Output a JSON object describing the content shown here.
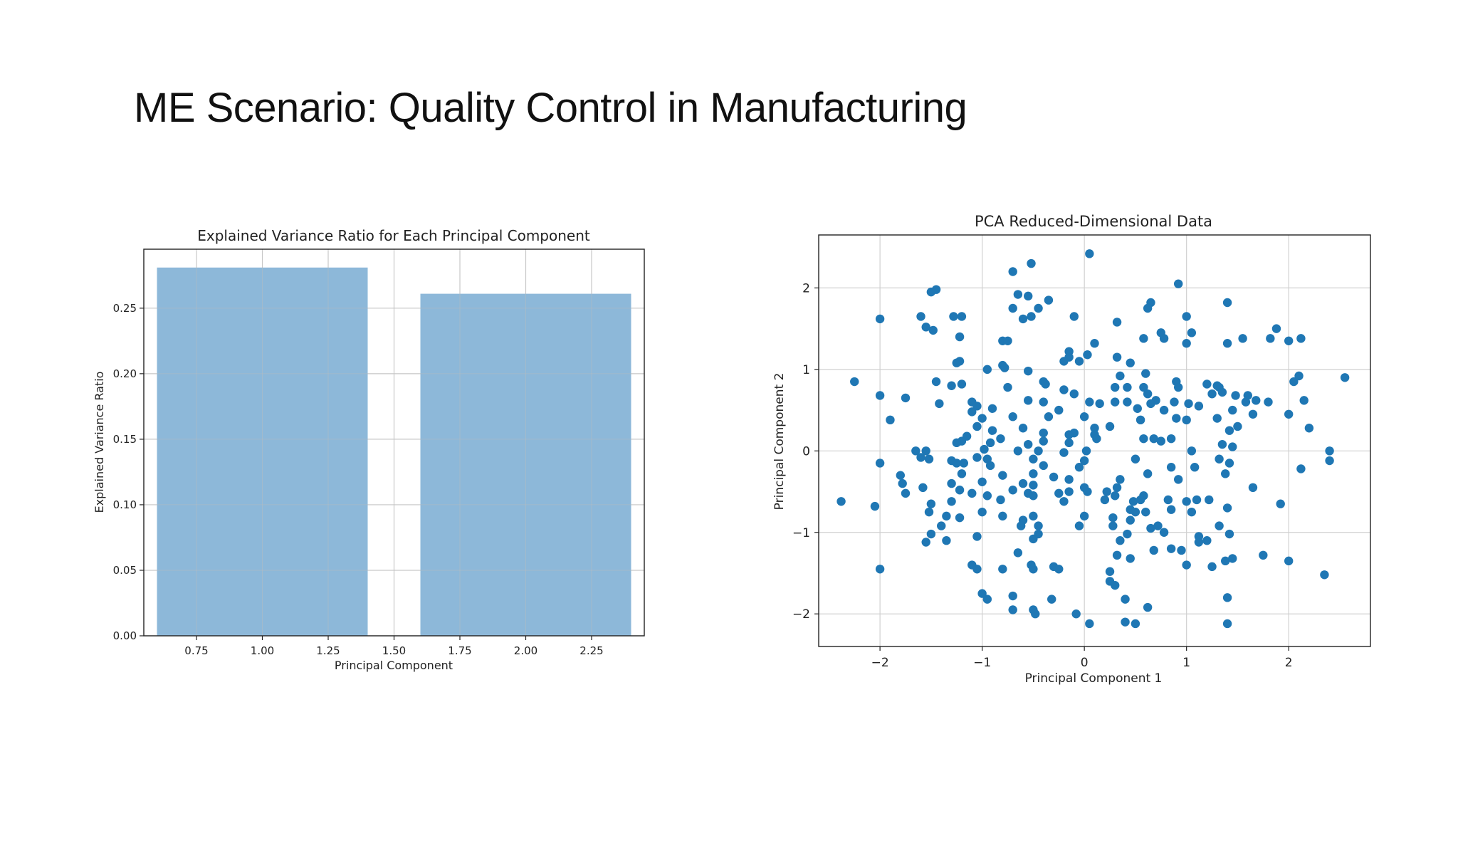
{
  "slide": {
    "title": "ME Scenario: Quality Control in Manufacturing"
  },
  "colors": {
    "bar": "#8db8d9",
    "point": "#1f77b4",
    "grid": "#d0d0d0",
    "axis": "#222222"
  },
  "chart_data": [
    {
      "type": "bar",
      "title": "Explained Variance Ratio for Each Principal Component",
      "xlabel": "Principal Component",
      "ylabel": "Explained Variance Ratio",
      "categories": [
        1,
        2
      ],
      "values": [
        0.281,
        0.261
      ],
      "bar_width": 0.8,
      "xlim": [
        0.55,
        2.45
      ],
      "ylim": [
        0,
        0.295
      ],
      "xticks": [
        0.75,
        1.0,
        1.25,
        1.5,
        1.75,
        2.0,
        2.25
      ],
      "xtick_labels": [
        "0.75",
        "1.00",
        "1.25",
        "1.50",
        "1.75",
        "2.00",
        "2.25"
      ],
      "yticks": [
        0,
        0.05,
        0.1,
        0.15,
        0.2,
        0.25
      ],
      "ytick_labels": [
        "0.00",
        "0.05",
        "0.10",
        "0.15",
        "0.20",
        "0.25"
      ],
      "grid": true
    },
    {
      "type": "scatter",
      "title": "PCA Reduced-Dimensional Data",
      "xlabel": "Principal Component 1",
      "ylabel": "Principal Component 2",
      "xlim": [
        -2.6,
        2.8
      ],
      "ylim": [
        -2.4,
        2.65
      ],
      "xticks": [
        -2,
        -1,
        0,
        1,
        2
      ],
      "xtick_labels": [
        "−2",
        "−1",
        "0",
        "1",
        "2"
      ],
      "yticks": [
        -2,
        -1,
        0,
        1,
        2
      ],
      "ytick_labels": [
        "−2",
        "−1",
        "0",
        "1",
        "2"
      ],
      "grid": true,
      "points": [
        [
          0.05,
          2.42
        ],
        [
          -0.52,
          2.3
        ],
        [
          -0.7,
          2.2
        ],
        [
          0.92,
          2.05
        ],
        [
          -1.45,
          1.98
        ],
        [
          -1.5,
          1.95
        ],
        [
          -0.65,
          1.92
        ],
        [
          -0.55,
          1.9
        ],
        [
          0.65,
          1.82
        ],
        [
          1.4,
          1.82
        ],
        [
          -0.35,
          1.85
        ],
        [
          -0.45,
          1.75
        ],
        [
          -0.7,
          1.75
        ],
        [
          0.62,
          1.75
        ],
        [
          -2.0,
          1.62
        ],
        [
          -1.6,
          1.65
        ],
        [
          -1.2,
          1.65
        ],
        [
          -1.28,
          1.65
        ],
        [
          -0.6,
          1.62
        ],
        [
          -0.52,
          1.65
        ],
        [
          -0.1,
          1.65
        ],
        [
          1.0,
          1.65
        ],
        [
          0.32,
          1.58
        ],
        [
          1.88,
          1.5
        ],
        [
          -1.55,
          1.52
        ],
        [
          -1.48,
          1.48
        ],
        [
          0.75,
          1.45
        ],
        [
          1.05,
          1.45
        ],
        [
          -1.22,
          1.4
        ],
        [
          0.58,
          1.38
        ],
        [
          0.78,
          1.38
        ],
        [
          1.55,
          1.38
        ],
        [
          1.82,
          1.38
        ],
        [
          2.0,
          1.35
        ],
        [
          2.12,
          1.38
        ],
        [
          -0.8,
          1.35
        ],
        [
          -0.75,
          1.35
        ],
        [
          1.0,
          1.32
        ],
        [
          1.4,
          1.32
        ],
        [
          0.1,
          1.32
        ],
        [
          -0.15,
          1.22
        ],
        [
          0.03,
          1.18
        ],
        [
          -0.15,
          1.15
        ],
        [
          -0.2,
          1.1
        ],
        [
          -1.22,
          1.1
        ],
        [
          -1.25,
          1.08
        ],
        [
          -0.8,
          1.05
        ],
        [
          -0.78,
          1.02
        ],
        [
          -0.95,
          1.0
        ],
        [
          0.32,
          1.15
        ],
        [
          0.45,
          1.08
        ],
        [
          -0.05,
          1.1
        ],
        [
          -0.55,
          0.98
        ],
        [
          0.6,
          0.95
        ],
        [
          0.35,
          0.92
        ],
        [
          -2.25,
          0.85
        ],
        [
          -1.45,
          0.85
        ],
        [
          -0.4,
          0.85
        ],
        [
          -0.38,
          0.82
        ],
        [
          0.9,
          0.85
        ],
        [
          1.2,
          0.82
        ],
        [
          1.3,
          0.8
        ],
        [
          2.05,
          0.85
        ],
        [
          2.1,
          0.92
        ],
        [
          2.55,
          0.9
        ],
        [
          -1.2,
          0.82
        ],
        [
          -1.3,
          0.8
        ],
        [
          -0.75,
          0.78
        ],
        [
          -0.2,
          0.75
        ],
        [
          0.3,
          0.78
        ],
        [
          0.42,
          0.78
        ],
        [
          0.58,
          0.78
        ],
        [
          0.92,
          0.78
        ],
        [
          1.32,
          0.78
        ],
        [
          1.35,
          0.72
        ],
        [
          -2.0,
          0.68
        ],
        [
          -1.75,
          0.65
        ],
        [
          -0.1,
          0.7
        ],
        [
          0.62,
          0.7
        ],
        [
          1.25,
          0.7
        ],
        [
          1.48,
          0.68
        ],
        [
          1.6,
          0.68
        ],
        [
          1.68,
          0.62
        ],
        [
          1.8,
          0.6
        ],
        [
          2.15,
          0.62
        ],
        [
          -1.42,
          0.58
        ],
        [
          -1.1,
          0.6
        ],
        [
          -1.05,
          0.55
        ],
        [
          -0.55,
          0.62
        ],
        [
          -0.4,
          0.6
        ],
        [
          0.05,
          0.6
        ],
        [
          0.15,
          0.58
        ],
        [
          0.3,
          0.6
        ],
        [
          0.42,
          0.6
        ],
        [
          0.7,
          0.62
        ],
        [
          0.65,
          0.58
        ],
        [
          0.88,
          0.6
        ],
        [
          1.02,
          0.58
        ],
        [
          1.12,
          0.55
        ],
        [
          1.58,
          0.6
        ],
        [
          -0.9,
          0.52
        ],
        [
          -1.1,
          0.48
        ],
        [
          -0.25,
          0.5
        ],
        [
          0.52,
          0.52
        ],
        [
          0.78,
          0.5
        ],
        [
          1.45,
          0.5
        ],
        [
          1.65,
          0.45
        ],
        [
          2.0,
          0.45
        ],
        [
          -1.9,
          0.38
        ],
        [
          -1.0,
          0.4
        ],
        [
          -0.7,
          0.42
        ],
        [
          -0.35,
          0.42
        ],
        [
          0.0,
          0.42
        ],
        [
          0.55,
          0.38
        ],
        [
          0.9,
          0.4
        ],
        [
          1.0,
          0.38
        ],
        [
          1.3,
          0.4
        ],
        [
          -1.05,
          0.3
        ],
        [
          -0.6,
          0.28
        ],
        [
          -0.9,
          0.25
        ],
        [
          0.1,
          0.28
        ],
        [
          0.25,
          0.3
        ],
        [
          1.5,
          0.3
        ],
        [
          1.42,
          0.25
        ],
        [
          2.2,
          0.28
        ],
        [
          -1.15,
          0.18
        ],
        [
          -1.2,
          0.12
        ],
        [
          -0.82,
          0.15
        ],
        [
          -0.4,
          0.22
        ],
        [
          -0.1,
          0.22
        ],
        [
          -0.15,
          0.2
        ],
        [
          0.1,
          0.2
        ],
        [
          0.12,
          0.15
        ],
        [
          0.58,
          0.15
        ],
        [
          0.68,
          0.15
        ],
        [
          0.75,
          0.12
        ],
        [
          0.85,
          0.15
        ],
        [
          -1.25,
          0.1
        ],
        [
          -0.92,
          0.1
        ],
        [
          -0.55,
          0.08
        ],
        [
          -0.4,
          0.12
        ],
        [
          -0.15,
          0.1
        ],
        [
          1.35,
          0.08
        ],
        [
          1.45,
          0.05
        ],
        [
          -1.65,
          0.0
        ],
        [
          -1.55,
          0.0
        ],
        [
          -0.98,
          0.02
        ],
        [
          -0.65,
          0.0
        ],
        [
          -0.45,
          0.0
        ],
        [
          -0.2,
          -0.02
        ],
        [
          0.02,
          0.0
        ],
        [
          1.05,
          0.0
        ],
        [
          2.4,
          0.0
        ],
        [
          -1.6,
          -0.08
        ],
        [
          -1.52,
          -0.1
        ],
        [
          -1.3,
          -0.12
        ],
        [
          -1.05,
          -0.08
        ],
        [
          -0.95,
          -0.1
        ],
        [
          -0.5,
          -0.1
        ],
        [
          0.0,
          -0.12
        ],
        [
          0.5,
          -0.1
        ],
        [
          1.32,
          -0.1
        ],
        [
          1.42,
          -0.15
        ],
        [
          -2.0,
          -0.15
        ],
        [
          -1.25,
          -0.15
        ],
        [
          -1.18,
          -0.15
        ],
        [
          -0.92,
          -0.18
        ],
        [
          -0.4,
          -0.18
        ],
        [
          -0.05,
          -0.2
        ],
        [
          0.85,
          -0.2
        ],
        [
          1.08,
          -0.2
        ],
        [
          2.4,
          -0.12
        ],
        [
          -1.8,
          -0.3
        ],
        [
          -1.2,
          -0.28
        ],
        [
          -0.8,
          -0.3
        ],
        [
          -0.5,
          -0.28
        ],
        [
          -0.3,
          -0.32
        ],
        [
          0.62,
          -0.28
        ],
        [
          1.38,
          -0.28
        ],
        [
          2.12,
          -0.22
        ],
        [
          -1.78,
          -0.4
        ],
        [
          -1.3,
          -0.4
        ],
        [
          -1.0,
          -0.38
        ],
        [
          -0.6,
          -0.4
        ],
        [
          -0.5,
          -0.42
        ],
        [
          -0.15,
          -0.35
        ],
        [
          0.35,
          -0.35
        ],
        [
          0.92,
          -0.35
        ],
        [
          -1.58,
          -0.45
        ],
        [
          -1.22,
          -0.48
        ],
        [
          -0.7,
          -0.48
        ],
        [
          -0.15,
          -0.5
        ],
        [
          0.0,
          -0.45
        ],
        [
          0.32,
          -0.45
        ],
        [
          0.22,
          -0.5
        ],
        [
          -1.75,
          -0.52
        ],
        [
          -1.1,
          -0.52
        ],
        [
          -0.95,
          -0.55
        ],
        [
          -0.55,
          -0.52
        ],
        [
          -0.5,
          -0.55
        ],
        [
          -0.25,
          -0.52
        ],
        [
          0.03,
          -0.5
        ],
        [
          0.3,
          -0.55
        ],
        [
          0.58,
          -0.55
        ],
        [
          1.65,
          -0.45
        ],
        [
          -1.5,
          -0.65
        ],
        [
          -1.3,
          -0.62
        ],
        [
          -0.82,
          -0.6
        ],
        [
          -0.2,
          -0.62
        ],
        [
          0.2,
          -0.6
        ],
        [
          0.48,
          -0.62
        ],
        [
          0.55,
          -0.6
        ],
        [
          0.82,
          -0.6
        ],
        [
          1.0,
          -0.62
        ],
        [
          1.1,
          -0.6
        ],
        [
          1.22,
          -0.6
        ],
        [
          1.92,
          -0.65
        ],
        [
          -2.38,
          -0.62
        ],
        [
          -2.05,
          -0.68
        ],
        [
          -1.52,
          -0.75
        ],
        [
          -1.35,
          -0.8
        ],
        [
          -1.22,
          -0.82
        ],
        [
          -1.0,
          -0.75
        ],
        [
          -0.8,
          -0.8
        ],
        [
          -0.5,
          -0.8
        ],
        [
          -0.6,
          -0.85
        ],
        [
          0.0,
          -0.8
        ],
        [
          0.28,
          -0.82
        ],
        [
          0.45,
          -0.72
        ],
        [
          0.5,
          -0.75
        ],
        [
          0.6,
          -0.75
        ],
        [
          0.85,
          -0.72
        ],
        [
          1.05,
          -0.75
        ],
        [
          1.4,
          -0.7
        ],
        [
          -1.4,
          -0.92
        ],
        [
          -0.62,
          -0.92
        ],
        [
          -0.45,
          -0.92
        ],
        [
          -0.05,
          -0.92
        ],
        [
          0.28,
          -0.92
        ],
        [
          0.45,
          -0.85
        ],
        [
          0.65,
          -0.95
        ],
        [
          0.72,
          -0.92
        ],
        [
          1.32,
          -0.92
        ],
        [
          -1.5,
          -1.02
        ],
        [
          -1.05,
          -1.05
        ],
        [
          -0.45,
          -1.02
        ],
        [
          0.42,
          -1.02
        ],
        [
          0.78,
          -1.0
        ],
        [
          1.12,
          -1.05
        ],
        [
          1.42,
          -1.02
        ],
        [
          -1.55,
          -1.12
        ],
        [
          -1.35,
          -1.1
        ],
        [
          -0.5,
          -1.08
        ],
        [
          0.35,
          -1.1
        ],
        [
          1.12,
          -1.12
        ],
        [
          1.2,
          -1.1
        ],
        [
          0.85,
          -1.2
        ],
        [
          0.95,
          -1.22
        ],
        [
          -0.65,
          -1.25
        ],
        [
          0.32,
          -1.28
        ],
        [
          0.45,
          -1.32
        ],
        [
          0.68,
          -1.22
        ],
        [
          1.38,
          -1.35
        ],
        [
          1.45,
          -1.32
        ],
        [
          1.75,
          -1.28
        ],
        [
          2.0,
          -1.35
        ],
        [
          -1.1,
          -1.4
        ],
        [
          -0.52,
          -1.4
        ],
        [
          -0.3,
          -1.42
        ],
        [
          -2.0,
          -1.45
        ],
        [
          -1.05,
          -1.45
        ],
        [
          -0.8,
          -1.45
        ],
        [
          -0.5,
          -1.45
        ],
        [
          -0.25,
          -1.45
        ],
        [
          0.25,
          -1.48
        ],
        [
          1.0,
          -1.4
        ],
        [
          1.25,
          -1.42
        ],
        [
          2.35,
          -1.52
        ],
        [
          0.25,
          -1.6
        ],
        [
          0.3,
          -1.65
        ],
        [
          -1.0,
          -1.75
        ],
        [
          -0.95,
          -1.82
        ],
        [
          -0.7,
          -1.78
        ],
        [
          -0.32,
          -1.82
        ],
        [
          0.4,
          -1.82
        ],
        [
          1.4,
          -1.8
        ],
        [
          -0.7,
          -1.95
        ],
        [
          -0.5,
          -1.95
        ],
        [
          -0.48,
          -2.0
        ],
        [
          -0.08,
          -2.0
        ],
        [
          0.62,
          -1.92
        ],
        [
          0.05,
          -2.12
        ],
        [
          0.4,
          -2.1
        ],
        [
          0.5,
          -2.12
        ],
        [
          1.4,
          -2.12
        ]
      ]
    }
  ]
}
